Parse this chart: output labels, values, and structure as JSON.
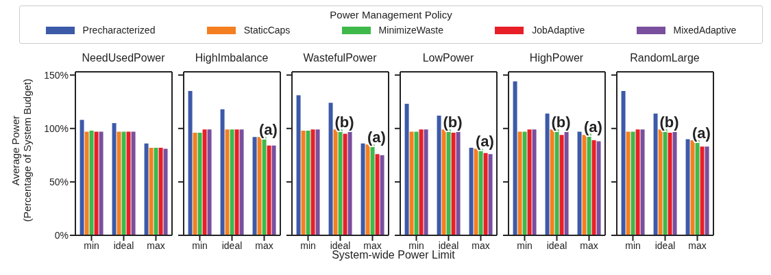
{
  "chart_data": [
    {
      "type": "bar",
      "title": "NeedUsedPower",
      "ylabel": "Average Power\n(Percentage of System Budget)",
      "legend_title": "Power Management Policy",
      "legend": "top",
      "categories": [
        "min",
        "ideal",
        "max"
      ],
      "ylim": [
        0,
        153
      ],
      "yticks": [
        {
          "value": 0,
          "label": "0%"
        },
        {
          "value": 50,
          "label": "50%"
        },
        {
          "value": 100,
          "label": "100%"
        },
        {
          "value": 150,
          "label": "150%"
        }
      ],
      "series": [
        {
          "name": "Precharacterized",
          "color": "#3d5aa9",
          "values": [
            108,
            105,
            86
          ]
        },
        {
          "name": "StaticCaps",
          "color": "#f47f20",
          "values": [
            97,
            97,
            82
          ]
        },
        {
          "name": "MinimizeWaste",
          "color": "#3eb94a",
          "values": [
            98,
            97,
            82
          ]
        },
        {
          "name": "JobAdaptive",
          "color": "#e81f27",
          "values": [
            97,
            97,
            82
          ]
        },
        {
          "name": "MixedAdaptive",
          "color": "#7a4f9e",
          "values": [
            97,
            97,
            81
          ]
        }
      ]
    },
    {
      "type": "bar",
      "title": "HighImbalance",
      "tick_labels": "x",
      "categories": [
        "min",
        "ideal",
        "max"
      ],
      "ylim": [
        0,
        153
      ],
      "yticks": [
        {
          "value": 0,
          "label": null
        },
        {
          "value": 50,
          "label": null
        },
        {
          "value": 100,
          "label": null
        },
        {
          "value": 150,
          "label": null
        }
      ],
      "annotations": [
        "(a)"
      ],
      "series": [
        {
          "color": "#3d5aa9",
          "values": [
            135,
            118,
            92
          ]
        },
        {
          "color": "#f47f20",
          "values": [
            96,
            99,
            92
          ]
        },
        {
          "color": "#3eb94a",
          "values": [
            96,
            99,
            92
          ]
        },
        {
          "color": "#e81f27",
          "values": [
            99,
            99,
            84
          ]
        },
        {
          "color": "#7a4f9e",
          "values": [
            99,
            99,
            84
          ]
        }
      ]
    },
    {
      "type": "bar",
      "title": "WastefulPower",
      "xlabel": "System-wide Power Limit",
      "tick_labels": "x",
      "categories": [
        "min",
        "ideal",
        "max"
      ],
      "ylim": [
        0,
        153
      ],
      "yticks": [
        {
          "value": 0,
          "label": null
        },
        {
          "value": 50,
          "label": null
        },
        {
          "value": 100,
          "label": null
        },
        {
          "value": 150,
          "label": null
        }
      ],
      "annotations": [
        "(b)",
        "(a)"
      ],
      "series": [
        {
          "color": "#3d5aa9",
          "values": [
            131,
            124,
            86
          ]
        },
        {
          "color": "#f47f20",
          "values": [
            98,
            99,
            85
          ]
        },
        {
          "color": "#3eb94a",
          "values": [
            98,
            99,
            85
          ]
        },
        {
          "color": "#e81f27",
          "values": [
            99,
            95,
            76
          ]
        },
        {
          "color": "#7a4f9e",
          "values": [
            99,
            98,
            75
          ]
        }
      ]
    },
    {
      "type": "bar",
      "title": "LowPower",
      "tick_labels": "x",
      "categories": [
        "min",
        "ideal",
        "max"
      ],
      "ylim": [
        0,
        153
      ],
      "yticks": [
        {
          "value": 0,
          "label": null
        },
        {
          "value": 50,
          "label": null
        },
        {
          "value": 100,
          "label": null
        },
        {
          "value": 150,
          "label": null
        }
      ],
      "annotations": [
        "(b)",
        "(a)"
      ],
      "series": [
        {
          "color": "#3d5aa9",
          "values": [
            123,
            112,
            82
          ]
        },
        {
          "color": "#f47f20",
          "values": [
            97,
            99,
            81
          ]
        },
        {
          "color": "#3eb94a",
          "values": [
            97,
            99,
            81
          ]
        },
        {
          "color": "#e81f27",
          "values": [
            99,
            96,
            77
          ]
        },
        {
          "color": "#7a4f9e",
          "values": [
            99,
            98,
            76
          ]
        }
      ]
    },
    {
      "type": "bar",
      "title": "HighPower",
      "tick_labels": "x",
      "categories": [
        "min",
        "ideal",
        "max"
      ],
      "ylim": [
        0,
        153
      ],
      "yticks": [
        {
          "value": 0,
          "label": null
        },
        {
          "value": 50,
          "label": null
        },
        {
          "value": 100,
          "label": null
        },
        {
          "value": 150,
          "label": null
        }
      ],
      "annotations": [
        "(b)",
        "(a)"
      ],
      "series": [
        {
          "color": "#3d5aa9",
          "values": [
            144,
            114,
            97
          ]
        },
        {
          "color": "#f47f20",
          "values": [
            97,
            99,
            94
          ]
        },
        {
          "color": "#3eb94a",
          "values": [
            97,
            99,
            95
          ]
        },
        {
          "color": "#e81f27",
          "values": [
            99,
            94,
            89
          ]
        },
        {
          "color": "#7a4f9e",
          "values": [
            99,
            98,
            88
          ]
        }
      ]
    },
    {
      "type": "bar",
      "title": "RandomLarge",
      "tick_labels": "x",
      "categories": [
        "min",
        "ideal",
        "max"
      ],
      "ylim": [
        0,
        153
      ],
      "yticks": [
        {
          "value": 0,
          "label": null
        },
        {
          "value": 50,
          "label": null
        },
        {
          "value": 100,
          "label": null
        },
        {
          "value": 150,
          "label": null
        }
      ],
      "annotations": [
        "(b)",
        "(a)"
      ],
      "series": [
        {
          "color": "#3d5aa9",
          "values": [
            135,
            114,
            90
          ]
        },
        {
          "color": "#f47f20",
          "values": [
            97,
            99,
            89
          ]
        },
        {
          "color": "#3eb94a",
          "values": [
            97,
            99,
            89
          ]
        },
        {
          "color": "#e81f27",
          "values": [
            99,
            96,
            83
          ]
        },
        {
          "color": "#7a4f9e",
          "values": [
            99,
            98,
            83
          ]
        }
      ]
    }
  ]
}
